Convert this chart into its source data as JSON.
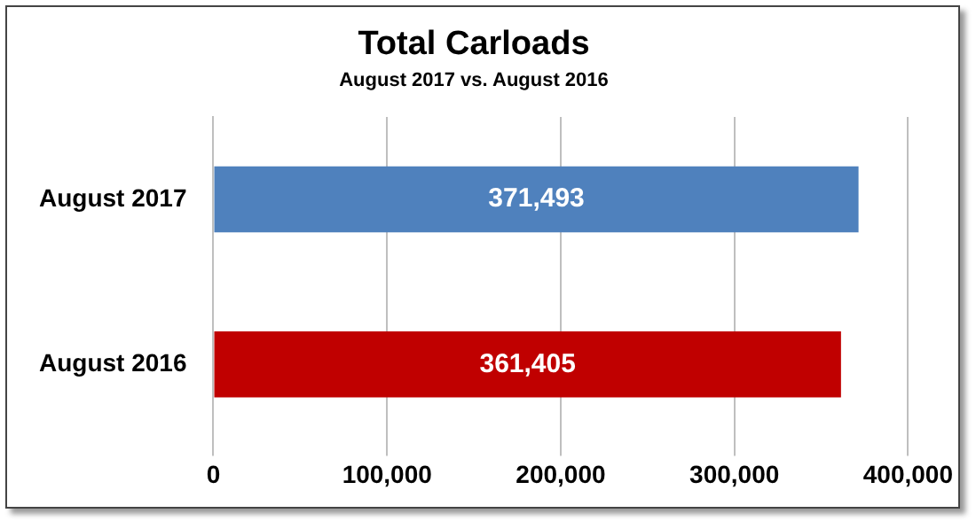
{
  "chart_data": {
    "type": "bar",
    "orientation": "horizontal",
    "title": "Total Carloads",
    "subtitle": "August 2017 vs. August 2016",
    "categories": [
      "August 2017",
      "August 2016"
    ],
    "values": [
      371493,
      361405
    ],
    "colors": [
      "#4f81bd",
      "#c00000"
    ],
    "xlim": [
      0,
      400000
    ],
    "xticks": [
      {
        "value": 0,
        "label": "0"
      },
      {
        "value": 100000,
        "label": "100,000"
      },
      {
        "value": 200000,
        "label": "200,000"
      },
      {
        "value": 300000,
        "label": "300,000"
      },
      {
        "value": 400000,
        "label": "400,000"
      }
    ],
    "value_labels": [
      "371,493",
      "361,405"
    ],
    "grid": "x",
    "legend": false
  }
}
